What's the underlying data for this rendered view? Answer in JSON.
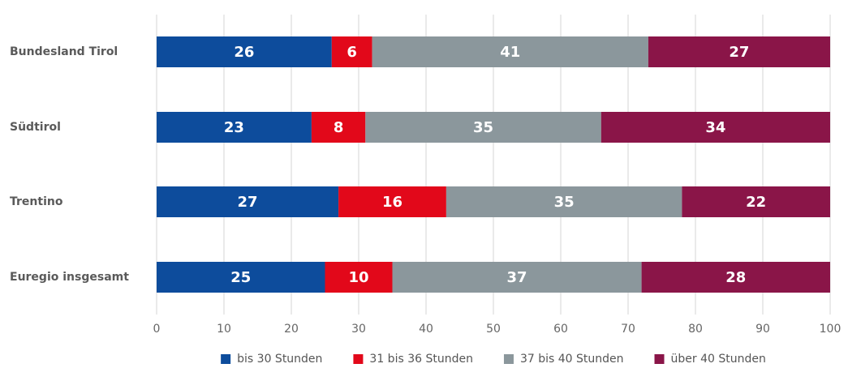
{
  "chart_data": {
    "type": "stacked_barh",
    "categories": [
      "Bundesland Tirol",
      "Südtirol",
      "Trentino",
      "Euregio insgesamt"
    ],
    "series": [
      {
        "name": "bis 30 Stunden",
        "color": "#0d4c9c",
        "values": [
          26,
          23,
          27,
          25
        ]
      },
      {
        "name": "31 bis 36 Stunden",
        "color": "#e2081a",
        "values": [
          6,
          8,
          16,
          10
        ]
      },
      {
        "name": "37 bis 40 Stunden",
        "color": "#8b979c",
        "values": [
          41,
          35,
          35,
          37
        ]
      },
      {
        "name": "über 40 Stunden",
        "color": "#8a1548",
        "values": [
          27,
          34,
          22,
          28
        ]
      }
    ],
    "xlim": [
      0,
      100
    ],
    "xticks": [
      0,
      10,
      20,
      30,
      40,
      50,
      60,
      70,
      80,
      90,
      100
    ],
    "grid": true,
    "legend": "bottom"
  }
}
